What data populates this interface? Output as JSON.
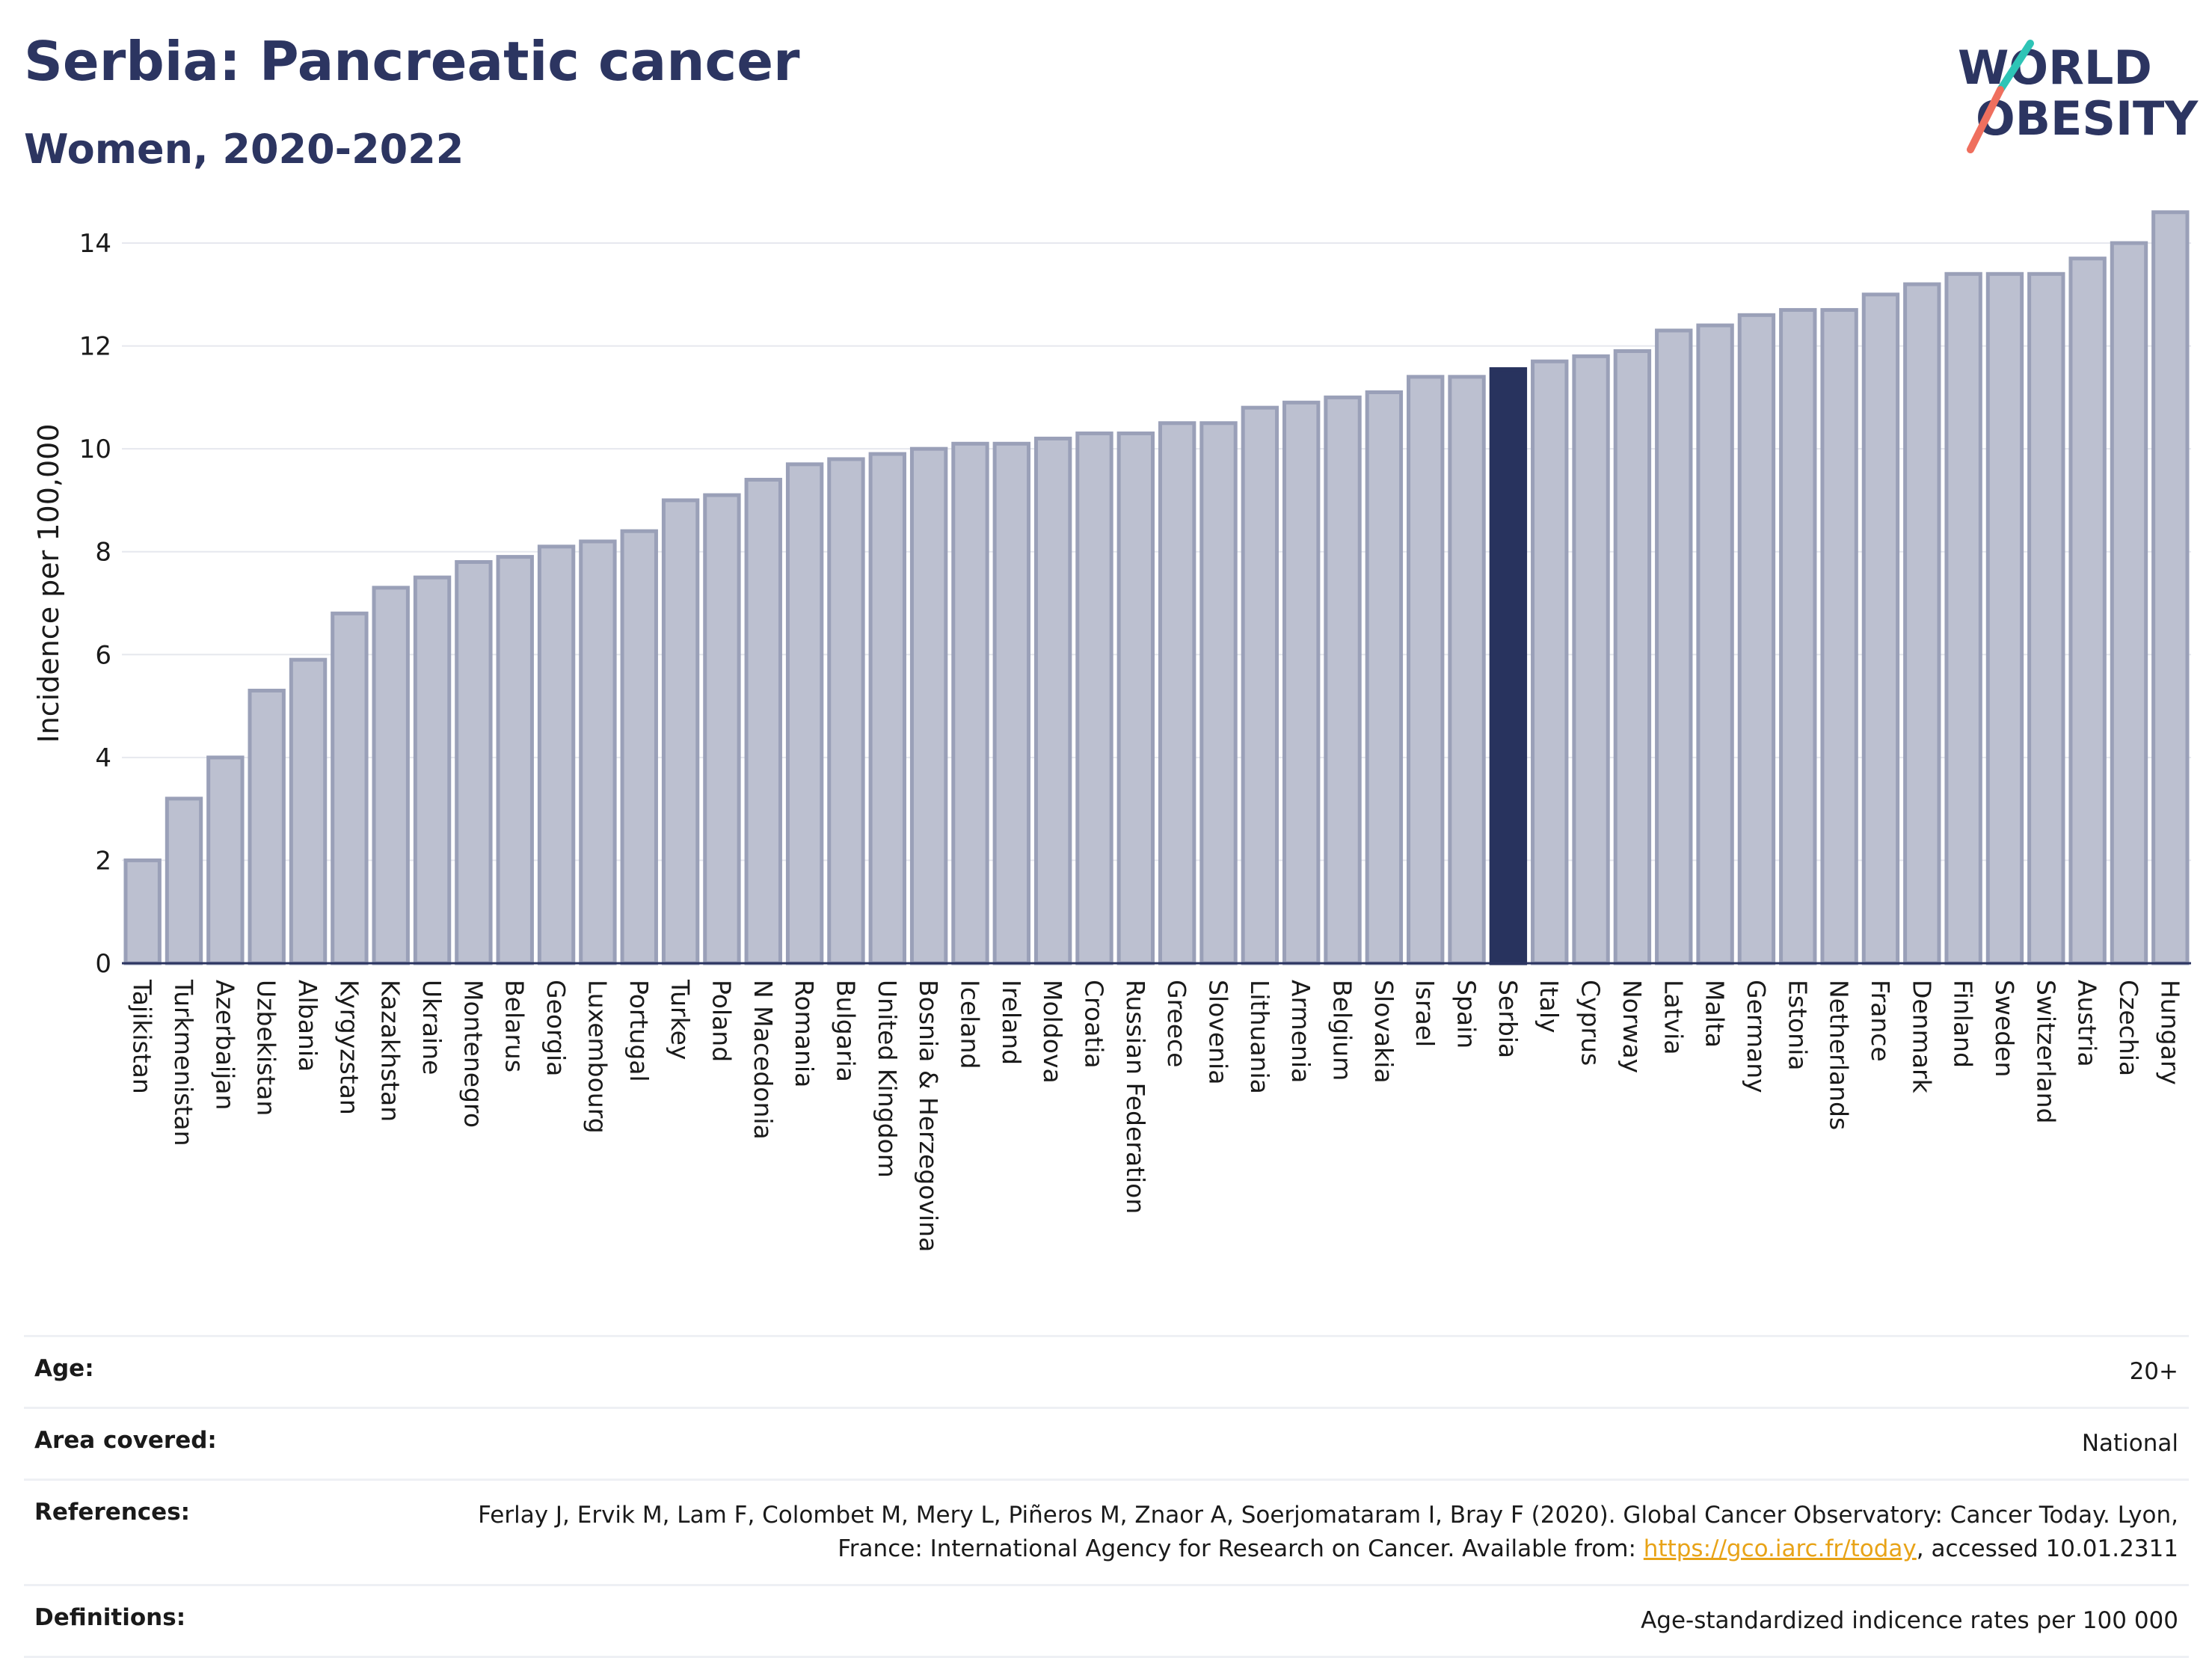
{
  "header": {
    "title": "Serbia: Pancreatic cancer",
    "subtitle": "Women, 2020-2022",
    "logo_line1": "WORLD",
    "logo_line2": "OBESITY"
  },
  "colors": {
    "title": "#2c3561",
    "bar_default": "#bcc0d0",
    "bar_default_stroke": "#9aa0b8",
    "bar_highlight": "#28335e",
    "link": "#e8a317"
  },
  "chart_data": {
    "type": "bar",
    "ylabel": "Incidence per 100,000",
    "ylim": [
      0,
      14.8
    ],
    "yticks": [
      0,
      2,
      4,
      6,
      8,
      10,
      12,
      14
    ],
    "grid": true,
    "highlight": "Serbia",
    "categories": [
      "Tajikistan",
      "Turkmenistan",
      "Azerbaijan",
      "Uzbekistan",
      "Albania",
      "Kyrgyzstan",
      "Kazakhstan",
      "Ukraine",
      "Montenegro",
      "Belarus",
      "Georgia",
      "Luxembourg",
      "Portugal",
      "Turkey",
      "Poland",
      "N Macedonia",
      "Romania",
      "Bulgaria",
      "United Kingdom",
      "Bosnia & Herzegovina",
      "Iceland",
      "Ireland",
      "Moldova",
      "Croatia",
      "Russian Federation",
      "Greece",
      "Slovenia",
      "Lithuania",
      "Armenia",
      "Belgium",
      "Slovakia",
      "Israel",
      "Spain",
      "Serbia",
      "Italy",
      "Cyprus",
      "Norway",
      "Latvia",
      "Malta",
      "Germany",
      "Estonia",
      "Netherlands",
      "France",
      "Denmark",
      "Finland",
      "Sweden",
      "Switzerland",
      "Austria",
      "Czechia",
      "Hungary"
    ],
    "values": [
      2.0,
      3.2,
      4.0,
      5.3,
      5.9,
      6.8,
      7.3,
      7.5,
      7.8,
      7.9,
      8.1,
      8.2,
      8.4,
      9.0,
      9.1,
      9.4,
      9.7,
      9.8,
      9.9,
      10.0,
      10.1,
      10.1,
      10.2,
      10.3,
      10.3,
      10.5,
      10.5,
      10.8,
      10.9,
      11.0,
      11.1,
      11.4,
      11.4,
      11.55,
      11.7,
      11.8,
      11.9,
      12.3,
      12.4,
      12.6,
      12.7,
      12.7,
      13.0,
      13.2,
      13.4,
      13.4,
      13.4,
      13.7,
      14.0,
      14.6
    ]
  },
  "meta": {
    "age_label": "Age:",
    "age_value": "20+",
    "area_label": "Area covered:",
    "area_value": "National",
    "references_label": "References:",
    "references_text": "Ferlay J, Ervik M, Lam F, Colombet M, Mery L, Piñeros M, Znaor A, Soerjomataram I, Bray F (2020). Global Cancer Observatory: Cancer Today. Lyon, France: International Agency for Research on Cancer. Available from:",
    "references_link": "https://gco.iarc.fr/today",
    "references_suffix": ", accessed 10.01.2311",
    "definitions_label": "Definitions:",
    "definitions_value": "Age-standardized indicence rates per 100 000"
  }
}
